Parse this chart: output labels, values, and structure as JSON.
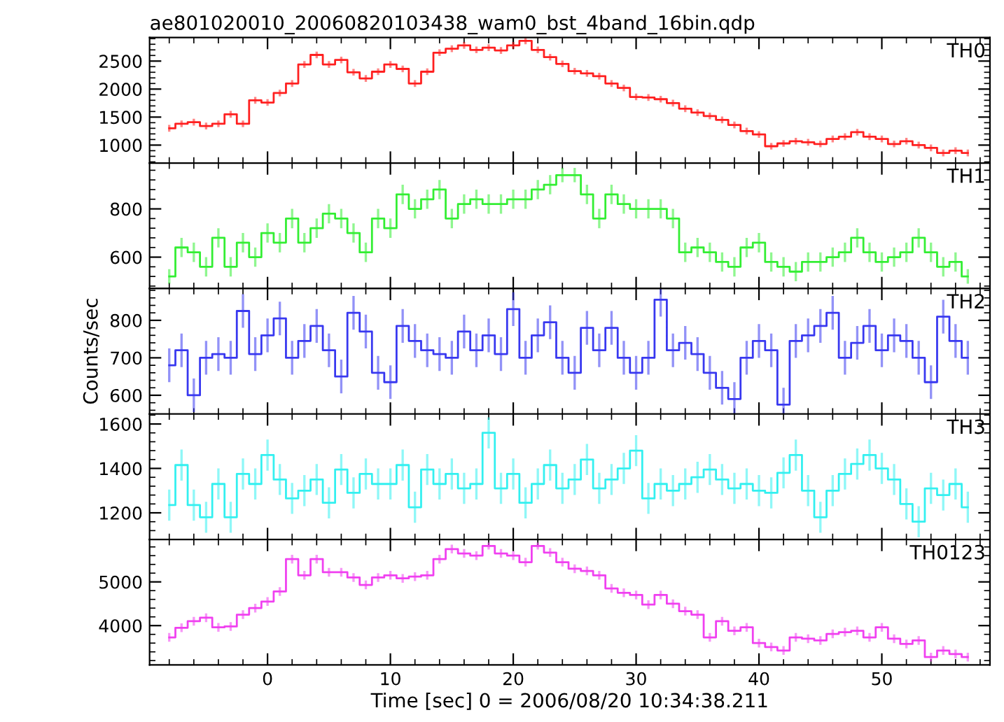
{
  "chart_data": [
    {
      "type": "step",
      "title": "ae801020010_20060820103438_wam0_bst_4band_16bin.qdp",
      "xlim": [
        -9.6,
        58.8
      ],
      "xticks": [
        0,
        10,
        20,
        30,
        40,
        50
      ],
      "ylim": [
        680,
        2920
      ],
      "yticks": [
        1000,
        1500,
        2000,
        2500
      ],
      "tick_labels": "y",
      "grid": false,
      "legend": false,
      "x": [
        -8,
        -7,
        -6,
        -5,
        -4,
        -3,
        -2,
        -1,
        0,
        1,
        2,
        3,
        4,
        5,
        6,
        7,
        8,
        9,
        10,
        11,
        12,
        13,
        14,
        15,
        16,
        17,
        18,
        19,
        20,
        21,
        22,
        23,
        24,
        25,
        26,
        27,
        28,
        29,
        30,
        31,
        32,
        33,
        34,
        35,
        36,
        37,
        38,
        39,
        40,
        41,
        42,
        43,
        44,
        45,
        46,
        47,
        48,
        49,
        50,
        51,
        52,
        53,
        54,
        55,
        56,
        57
      ],
      "series": [
        {
          "name": "TH0",
          "color": "#ff2020",
          "values": [
            1300,
            1380,
            1410,
            1340,
            1380,
            1550,
            1380,
            1800,
            1760,
            1930,
            2100,
            2440,
            2610,
            2440,
            2520,
            2300,
            2190,
            2310,
            2440,
            2360,
            2100,
            2310,
            2650,
            2720,
            2780,
            2700,
            2740,
            2690,
            2780,
            2860,
            2700,
            2570,
            2450,
            2320,
            2280,
            2230,
            2100,
            2020,
            1860,
            1850,
            1820,
            1750,
            1650,
            1580,
            1520,
            1450,
            1360,
            1250,
            1190,
            980,
            1030,
            1070,
            1050,
            1020,
            1110,
            1150,
            1230,
            1150,
            1110,
            1020,
            1070,
            1000,
            950,
            860,
            900,
            860
          ],
          "errors": [
            60,
            60,
            60,
            60,
            60,
            60,
            60,
            60,
            60,
            60,
            60,
            60,
            60,
            60,
            60,
            60,
            60,
            60,
            60,
            60,
            60,
            60,
            60,
            60,
            60,
            60,
            60,
            60,
            60,
            60,
            60,
            60,
            60,
            60,
            60,
            60,
            60,
            60,
            60,
            60,
            60,
            60,
            60,
            60,
            60,
            60,
            60,
            60,
            60,
            60,
            60,
            60,
            60,
            60,
            60,
            60,
            60,
            60,
            60,
            60,
            60,
            60,
            60,
            60,
            60,
            60
          ]
        }
      ]
    },
    {
      "type": "step",
      "xlim": [
        -9.6,
        58.8
      ],
      "xticks": [
        0,
        10,
        20,
        30,
        40,
        50
      ],
      "ylim": [
        470,
        990
      ],
      "yticks": [
        600,
        800
      ],
      "tick_labels": "y",
      "grid": false,
      "legend": false,
      "x": [
        -8,
        -7,
        -6,
        -5,
        -4,
        -3,
        -2,
        -1,
        0,
        1,
        2,
        3,
        4,
        5,
        6,
        7,
        8,
        9,
        10,
        11,
        12,
        13,
        14,
        15,
        16,
        17,
        18,
        19,
        20,
        21,
        22,
        23,
        24,
        25,
        26,
        27,
        28,
        29,
        30,
        31,
        32,
        33,
        34,
        35,
        36,
        37,
        38,
        39,
        40,
        41,
        42,
        43,
        44,
        45,
        46,
        47,
        48,
        49,
        50,
        51,
        52,
        53,
        54,
        55,
        56,
        57
      ],
      "series": [
        {
          "name": "TH1",
          "color": "#33ee33",
          "values": [
            520,
            640,
            620,
            560,
            680,
            560,
            660,
            600,
            700,
            660,
            760,
            660,
            720,
            780,
            760,
            700,
            620,
            760,
            720,
            860,
            800,
            840,
            880,
            760,
            820,
            840,
            820,
            820,
            840,
            840,
            880,
            900,
            940,
            940,
            860,
            760,
            860,
            820,
            800,
            800,
            800,
            760,
            620,
            640,
            620,
            580,
            560,
            640,
            660,
            580,
            560,
            540,
            580,
            580,
            600,
            620,
            680,
            620,
            580,
            600,
            620,
            680,
            620,
            560,
            580,
            520
          ],
          "errors": [
            30,
            40,
            40,
            40,
            40,
            40,
            40,
            40,
            40,
            40,
            40,
            40,
            40,
            40,
            40,
            40,
            40,
            40,
            40,
            40,
            40,
            40,
            40,
            40,
            40,
            40,
            40,
            40,
            40,
            40,
            40,
            40,
            30,
            30,
            40,
            40,
            40,
            40,
            40,
            40,
            40,
            40,
            40,
            40,
            40,
            40,
            40,
            40,
            40,
            40,
            40,
            40,
            40,
            40,
            40,
            40,
            40,
            40,
            40,
            40,
            40,
            40,
            40,
            40,
            40,
            30
          ]
        }
      ]
    },
    {
      "type": "step",
      "ylabel": "Counts/sec",
      "xlim": [
        -9.6,
        58.8
      ],
      "xticks": [
        0,
        10,
        20,
        30,
        40,
        50
      ],
      "ylim": [
        550,
        885
      ],
      "yticks": [
        600,
        700,
        800
      ],
      "tick_labels": "y",
      "grid": false,
      "legend": false,
      "x": [
        -8,
        -7,
        -6,
        -5,
        -4,
        -3,
        -2,
        -1,
        0,
        1,
        2,
        3,
        4,
        5,
        6,
        7,
        8,
        9,
        10,
        11,
        12,
        13,
        14,
        15,
        16,
        17,
        18,
        19,
        20,
        21,
        22,
        23,
        24,
        25,
        26,
        27,
        28,
        29,
        30,
        31,
        32,
        33,
        34,
        35,
        36,
        37,
        38,
        39,
        40,
        41,
        42,
        43,
        44,
        45,
        46,
        47,
        48,
        49,
        50,
        51,
        52,
        53,
        54,
        55,
        56,
        57
      ],
      "series": [
        {
          "name": "TH2",
          "color": "#3838f0",
          "values": [
            680,
            720,
            600,
            700,
            710,
            700,
            825,
            710,
            760,
            805,
            700,
            745,
            785,
            720,
            650,
            820,
            770,
            660,
            635,
            785,
            745,
            720,
            710,
            700,
            770,
            720,
            760,
            710,
            830,
            700,
            760,
            795,
            700,
            660,
            780,
            720,
            780,
            700,
            660,
            700,
            855,
            720,
            740,
            710,
            660,
            620,
            590,
            700,
            745,
            720,
            575,
            745,
            760,
            785,
            820,
            700,
            740,
            785,
            720,
            760,
            745,
            700,
            635,
            810,
            745,
            700
          ],
          "errors": [
            45,
            45,
            45,
            45,
            45,
            45,
            45,
            45,
            45,
            45,
            45,
            45,
            45,
            45,
            45,
            45,
            45,
            45,
            45,
            45,
            45,
            45,
            45,
            45,
            45,
            45,
            45,
            45,
            45,
            45,
            45,
            45,
            45,
            45,
            45,
            45,
            45,
            45,
            45,
            45,
            45,
            45,
            45,
            45,
            45,
            45,
            45,
            45,
            45,
            45,
            45,
            45,
            45,
            45,
            45,
            45,
            45,
            45,
            45,
            45,
            45,
            45,
            45,
            45,
            45,
            45
          ]
        }
      ]
    },
    {
      "type": "step",
      "xlim": [
        -9.6,
        58.8
      ],
      "xticks": [
        0,
        10,
        20,
        30,
        40,
        50
      ],
      "ylim": [
        1080,
        1645
      ],
      "yticks": [
        1200,
        1400,
        1600
      ],
      "tick_labels": "y",
      "grid": false,
      "legend": false,
      "x": [
        -8,
        -7,
        -6,
        -5,
        -4,
        -3,
        -2,
        -1,
        0,
        1,
        2,
        3,
        4,
        5,
        6,
        7,
        8,
        9,
        10,
        11,
        12,
        13,
        14,
        15,
        16,
        17,
        18,
        19,
        20,
        21,
        22,
        23,
        24,
        25,
        26,
        27,
        28,
        29,
        30,
        31,
        32,
        33,
        34,
        35,
        36,
        37,
        38,
        39,
        40,
        41,
        42,
        43,
        44,
        45,
        46,
        47,
        48,
        49,
        50,
        51,
        52,
        53,
        54,
        55,
        56,
        57
      ],
      "series": [
        {
          "name": "TH3",
          "color": "#33f0f0",
          "values": [
            1235,
            1415,
            1235,
            1180,
            1330,
            1180,
            1375,
            1330,
            1460,
            1350,
            1265,
            1300,
            1350,
            1245,
            1395,
            1290,
            1375,
            1330,
            1330,
            1415,
            1225,
            1395,
            1330,
            1375,
            1310,
            1330,
            1560,
            1310,
            1375,
            1245,
            1330,
            1415,
            1310,
            1350,
            1440,
            1310,
            1350,
            1400,
            1480,
            1265,
            1330,
            1300,
            1330,
            1360,
            1395,
            1350,
            1310,
            1330,
            1300,
            1290,
            1380,
            1460,
            1300,
            1180,
            1300,
            1375,
            1420,
            1460,
            1400,
            1350,
            1240,
            1160,
            1310,
            1280,
            1330,
            1225
          ],
          "errors": [
            70,
            70,
            70,
            70,
            70,
            70,
            70,
            70,
            70,
            70,
            70,
            70,
            70,
            70,
            70,
            70,
            70,
            70,
            70,
            70,
            70,
            70,
            70,
            70,
            70,
            70,
            70,
            70,
            70,
            70,
            70,
            70,
            70,
            70,
            70,
            70,
            70,
            70,
            70,
            70,
            70,
            70,
            70,
            70,
            70,
            70,
            70,
            70,
            70,
            70,
            70,
            70,
            70,
            70,
            70,
            70,
            70,
            70,
            70,
            70,
            70,
            70,
            70,
            70,
            70,
            70
          ]
        }
      ]
    },
    {
      "type": "step",
      "xlabel": "Time [sec] 0 = 2006/08/20 10:34:38.211",
      "xlim": [
        -9.6,
        58.8
      ],
      "xticks": [
        0,
        10,
        20,
        30,
        40,
        50
      ],
      "ylim": [
        3100,
        5970
      ],
      "yticks": [
        4000,
        5000
      ],
      "grid": false,
      "legend": false,
      "x": [
        -8,
        -7,
        -6,
        -5,
        -4,
        -3,
        -2,
        -1,
        0,
        1,
        2,
        3,
        4,
        5,
        6,
        7,
        8,
        9,
        10,
        11,
        12,
        13,
        14,
        15,
        16,
        17,
        18,
        19,
        20,
        21,
        22,
        23,
        24,
        25,
        26,
        27,
        28,
        29,
        30,
        31,
        32,
        33,
        34,
        35,
        36,
        37,
        38,
        39,
        40,
        41,
        42,
        43,
        44,
        45,
        46,
        47,
        48,
        49,
        50,
        51,
        52,
        53,
        54,
        55,
        56,
        57
      ],
      "series": [
        {
          "name": "TH0123",
          "color": "#f040f0",
          "values": [
            3730,
            3950,
            4100,
            4180,
            3960,
            3980,
            4250,
            4400,
            4550,
            4780,
            5520,
            5150,
            5520,
            5220,
            5220,
            5100,
            4930,
            5100,
            5150,
            5080,
            5120,
            5150,
            5520,
            5750,
            5650,
            5600,
            5820,
            5650,
            5600,
            5450,
            5820,
            5670,
            5450,
            5300,
            5250,
            5150,
            4850,
            4750,
            4700,
            4480,
            4700,
            4500,
            4330,
            4250,
            3730,
            4100,
            3880,
            3960,
            3600,
            3510,
            3430,
            3730,
            3700,
            3660,
            3810,
            3850,
            3880,
            3730,
            3960,
            3700,
            3580,
            3660,
            3280,
            3430,
            3350,
            3280
          ],
          "errors": [
            100,
            100,
            100,
            100,
            100,
            100,
            100,
            100,
            100,
            100,
            100,
            100,
            100,
            100,
            100,
            100,
            100,
            100,
            100,
            100,
            100,
            100,
            100,
            100,
            100,
            100,
            80,
            100,
            100,
            100,
            80,
            100,
            100,
            100,
            100,
            100,
            100,
            100,
            100,
            100,
            100,
            100,
            100,
            100,
            100,
            100,
            100,
            100,
            100,
            100,
            100,
            100,
            100,
            100,
            100,
            100,
            100,
            100,
            100,
            100,
            100,
            100,
            100,
            100,
            100,
            100
          ]
        }
      ]
    }
  ]
}
